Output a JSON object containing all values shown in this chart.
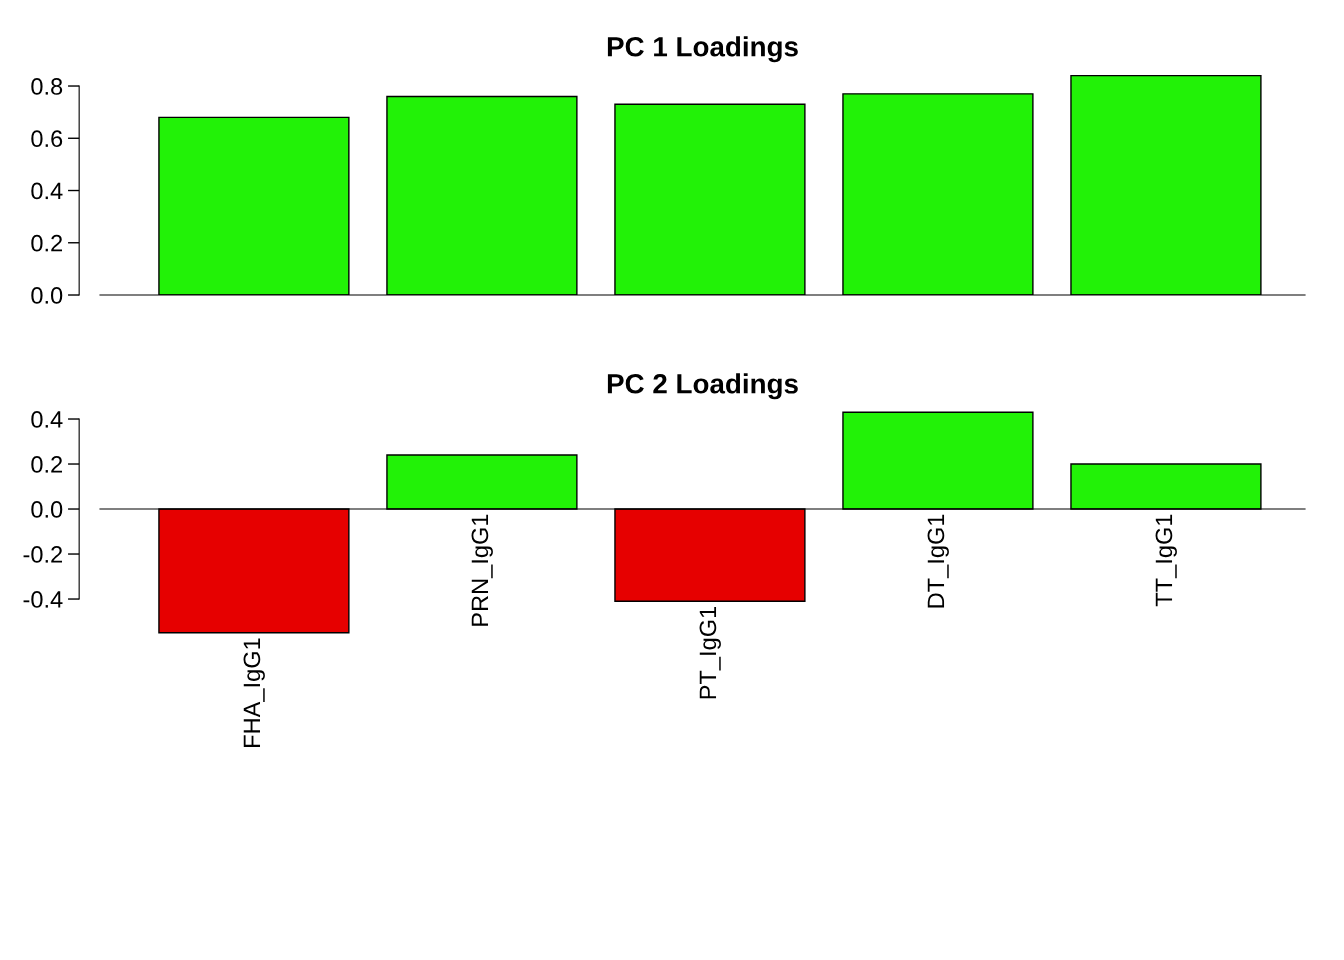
{
  "chart_data": [
    {
      "type": "bar",
      "title": "PC 1 Loadings",
      "categories": [
        null,
        null,
        null,
        null,
        null
      ],
      "values": [
        0.68,
        0.76,
        0.73,
        0.77,
        0.84
      ],
      "colors": [
        "#22f207",
        "#22f207",
        "#22f207",
        "#22f207",
        "#22f207"
      ],
      "ylim": [
        0,
        0.85
      ],
      "yticks": [
        {
          "value": 0,
          "label": "0.0"
        },
        {
          "value": 0.2,
          "label": "0.2"
        },
        {
          "value": 0.4,
          "label": "0.4"
        },
        {
          "value": 0.6,
          "label": "0.6"
        },
        {
          "value": 0.8,
          "label": "0.8"
        }
      ],
      "tick_labels": "y"
    },
    {
      "type": "bar",
      "title": "PC 2 Loadings",
      "categories": [
        "FHA_IgG1",
        "PRN_IgG1",
        "PT_IgG1",
        "DT_IgG1",
        "TT_IgG1"
      ],
      "values": [
        -0.55,
        0.24,
        -0.41,
        0.43,
        0.2
      ],
      "colors": [
        "#e60000",
        "#22f207",
        "#e60000",
        "#22f207",
        "#22f207"
      ],
      "ylim": [
        -0.56,
        0.44
      ],
      "yticks": [
        {
          "value": -0.4,
          "label": "-0.4"
        },
        {
          "value": -0.2,
          "label": "-0.2"
        },
        {
          "value": 0,
          "label": "0.0"
        },
        {
          "value": 0.2,
          "label": "0.2"
        },
        {
          "value": 0.4,
          "label": "0.4"
        }
      ]
    }
  ]
}
